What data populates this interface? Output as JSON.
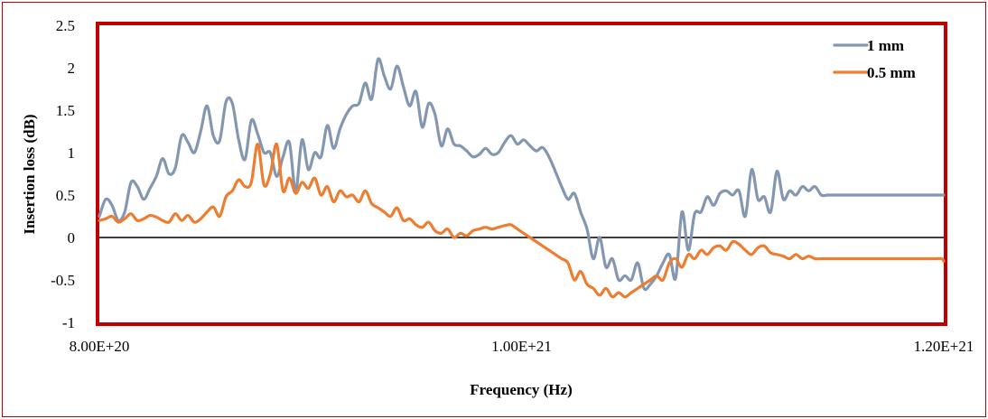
{
  "chart_data": {
    "type": "line",
    "xlabel": "Frequency (Hz)",
    "ylabel": "Insertion loss (dB)",
    "xlim": [
      8e+20,
      1.2e+21
    ],
    "ylim": [
      -1,
      2.5
    ],
    "x_ticks": [
      {
        "value": 8e+20,
        "label": "8.00E+20"
      },
      {
        "value": 1e+21,
        "label": "1.00E+21"
      },
      {
        "value": 1.2e+21,
        "label": "1.20E+21"
      }
    ],
    "y_ticks": [
      {
        "value": 2.5,
        "label": "2.5"
      },
      {
        "value": 2,
        "label": "2"
      },
      {
        "value": 1.5,
        "label": "1.5"
      },
      {
        "value": 1,
        "label": "1"
      },
      {
        "value": 0.5,
        "label": "0.5"
      },
      {
        "value": 0,
        "label": "0"
      },
      {
        "value": -0.5,
        "label": "-0.5"
      },
      {
        "value": -1,
        "label": "-1"
      }
    ],
    "grid": false,
    "zero_line": true,
    "legend_position": "top-right",
    "series": [
      {
        "name": "1 mm",
        "color": "#8497b0",
        "x": [
          8e+20,
          8.03e+20,
          8.06e+20,
          8.09e+20,
          8.12e+20,
          8.15e+20,
          8.18e+20,
          8.21e+20,
          8.24e+20,
          8.27e+20,
          8.3e+20,
          8.33e+20,
          8.36e+20,
          8.39e+20,
          8.42e+20,
          8.45e+20,
          8.48e+20,
          8.51e+20,
          8.54e+20,
          8.57e+20,
          8.6e+20,
          8.63e+20,
          8.66e+20,
          8.69e+20,
          8.72e+20,
          8.75e+20,
          8.78e+20,
          8.81e+20,
          8.84e+20,
          8.87e+20,
          8.9e+20,
          8.93e+20,
          8.96e+20,
          8.99e+20,
          9.02e+20,
          9.05e+20,
          9.08e+20,
          9.11e+20,
          9.14e+20,
          9.17e+20,
          9.2e+20,
          9.23e+20,
          9.26e+20,
          9.29e+20,
          9.32e+20,
          9.35e+20,
          9.38e+20,
          9.41e+20,
          9.44e+20,
          9.47e+20,
          9.5e+20,
          9.53e+20,
          9.56e+20,
          9.59e+20,
          9.62e+20,
          9.65e+20,
          9.68e+20,
          9.71e+20,
          9.74e+20,
          9.77e+20,
          9.8e+20,
          9.83e+20,
          9.86e+20,
          9.89e+20,
          9.92e+20,
          9.95e+20,
          9.98e+20,
          1.001e+21,
          1.004e+21,
          1.007e+21,
          1.01e+21,
          1.013e+21,
          1.016e+21,
          1.019e+21,
          1.022e+21,
          1.025e+21,
          1.028e+21,
          1.031e+21,
          1.034e+21,
          1.037e+21,
          1.04e+21,
          1.043e+21,
          1.046e+21,
          1.049e+21,
          1.052e+21,
          1.055e+21,
          1.058e+21,
          1.061e+21,
          1.064e+21,
          1.067e+21,
          1.07e+21,
          1.073e+21,
          1.076e+21,
          1.079e+21,
          1.082e+21,
          1.085e+21,
          1.088e+21,
          1.091e+21,
          1.094e+21,
          1.097e+21,
          1.1e+21,
          1.103e+21,
          1.106e+21,
          1.109e+21,
          1.112e+21,
          1.115e+21,
          1.118e+21,
          1.121e+21,
          1.124e+21,
          1.127e+21,
          1.13e+21,
          1.133e+21,
          1.136e+21,
          1.139e+21,
          1.142e+21,
          1.145e+21,
          1.148e+21,
          1.151e+21,
          1.154e+21,
          1.157e+21,
          1.16e+21,
          1.163e+21,
          1.166e+21,
          1.169e+21,
          1.172e+21,
          1.175e+21,
          1.178e+21,
          1.181e+21,
          1.184e+21,
          1.187e+21,
          1.19e+21,
          1.193e+21,
          1.196e+21,
          1.199e+21,
          1.2e+21
        ],
        "values": [
          0.25,
          0.45,
          0.38,
          0.2,
          0.3,
          0.65,
          0.6,
          0.45,
          0.58,
          0.72,
          0.93,
          0.75,
          0.82,
          1.2,
          1.12,
          1.0,
          1.25,
          1.55,
          1.2,
          1.14,
          1.6,
          1.58,
          1.15,
          0.92,
          1.38,
          1.22,
          1.0,
          1.0,
          0.72,
          0.95,
          1.12,
          0.55,
          1.15,
          0.8,
          1.0,
          0.95,
          1.32,
          1.05,
          1.28,
          1.45,
          1.55,
          1.58,
          1.82,
          1.63,
          2.1,
          1.9,
          1.75,
          2.02,
          1.78,
          1.55,
          1.72,
          1.3,
          1.58,
          1.45,
          1.08,
          1.28,
          1.1,
          1.08,
          1.02,
          0.95,
          0.98,
          1.05,
          0.98,
          1.0,
          1.12,
          1.2,
          1.1,
          1.15,
          1.08,
          1.02,
          1.06,
          0.95,
          0.78,
          0.6,
          0.45,
          0.52,
          0.3,
          0.1,
          -0.25,
          0.0,
          -0.35,
          -0.25,
          -0.5,
          -0.45,
          -0.5,
          -0.3,
          -0.6,
          -0.55,
          -0.45,
          -0.3,
          -0.2,
          -0.48,
          0.3,
          -0.15,
          0.28,
          0.3,
          0.48,
          0.38,
          0.52,
          0.55,
          0.5,
          0.55,
          0.25,
          0.8,
          0.45,
          0.48,
          0.3,
          0.78,
          0.45,
          0.55,
          0.5,
          0.6,
          0.55,
          0.6,
          0.5,
          0.5,
          0.5,
          0.5,
          0.5,
          0.5,
          0.5,
          0.5,
          0.5,
          0.5,
          0.5,
          0.5,
          0.5,
          0.5,
          0.5,
          0.5,
          0.5,
          0.5,
          0.5,
          0.5,
          0.5
        ]
      },
      {
        "name": "0.5 mm",
        "color": "#ed7d31",
        "x": [
          8e+20,
          8.03e+20,
          8.06e+20,
          8.09e+20,
          8.12e+20,
          8.15e+20,
          8.18e+20,
          8.21e+20,
          8.24e+20,
          8.27e+20,
          8.3e+20,
          8.33e+20,
          8.36e+20,
          8.39e+20,
          8.42e+20,
          8.45e+20,
          8.48e+20,
          8.51e+20,
          8.54e+20,
          8.57e+20,
          8.6e+20,
          8.63e+20,
          8.66e+20,
          8.69e+20,
          8.72e+20,
          8.75e+20,
          8.78e+20,
          8.81e+20,
          8.84e+20,
          8.87e+20,
          8.9e+20,
          8.93e+20,
          8.96e+20,
          8.99e+20,
          9.02e+20,
          9.05e+20,
          9.08e+20,
          9.11e+20,
          9.14e+20,
          9.17e+20,
          9.2e+20,
          9.23e+20,
          9.26e+20,
          9.29e+20,
          9.32e+20,
          9.35e+20,
          9.38e+20,
          9.41e+20,
          9.44e+20,
          9.47e+20,
          9.5e+20,
          9.53e+20,
          9.56e+20,
          9.59e+20,
          9.62e+20,
          9.65e+20,
          9.68e+20,
          9.71e+20,
          9.74e+20,
          9.77e+20,
          9.8e+20,
          9.83e+20,
          9.86e+20,
          9.89e+20,
          9.92e+20,
          9.95e+20,
          9.98e+20,
          1.001e+21,
          1.004e+21,
          1.007e+21,
          1.01e+21,
          1.013e+21,
          1.016e+21,
          1.019e+21,
          1.022e+21,
          1.025e+21,
          1.028e+21,
          1.031e+21,
          1.034e+21,
          1.037e+21,
          1.04e+21,
          1.043e+21,
          1.046e+21,
          1.049e+21,
          1.052e+21,
          1.055e+21,
          1.058e+21,
          1.061e+21,
          1.064e+21,
          1.067e+21,
          1.07e+21,
          1.073e+21,
          1.076e+21,
          1.079e+21,
          1.082e+21,
          1.085e+21,
          1.088e+21,
          1.091e+21,
          1.094e+21,
          1.097e+21,
          1.1e+21,
          1.103e+21,
          1.106e+21,
          1.109e+21,
          1.112e+21,
          1.115e+21,
          1.118e+21,
          1.121e+21,
          1.124e+21,
          1.127e+21,
          1.13e+21,
          1.133e+21,
          1.136e+21,
          1.139e+21,
          1.142e+21,
          1.145e+21,
          1.148e+21,
          1.151e+21,
          1.154e+21,
          1.157e+21,
          1.16e+21,
          1.163e+21,
          1.166e+21,
          1.169e+21,
          1.172e+21,
          1.175e+21,
          1.178e+21,
          1.181e+21,
          1.184e+21,
          1.187e+21,
          1.19e+21,
          1.193e+21,
          1.196e+21,
          1.199e+21,
          1.2e+21
        ],
        "values": [
          0.2,
          0.22,
          0.25,
          0.18,
          0.22,
          0.28,
          0.2,
          0.22,
          0.26,
          0.24,
          0.2,
          0.18,
          0.28,
          0.2,
          0.26,
          0.18,
          0.22,
          0.3,
          0.36,
          0.25,
          0.48,
          0.55,
          0.68,
          0.6,
          0.65,
          1.1,
          0.62,
          0.75,
          1.1,
          0.55,
          0.7,
          0.52,
          0.65,
          0.58,
          0.7,
          0.5,
          0.6,
          0.42,
          0.55,
          0.48,
          0.5,
          0.42,
          0.55,
          0.4,
          0.35,
          0.3,
          0.25,
          0.35,
          0.2,
          0.22,
          0.15,
          0.12,
          0.18,
          0.08,
          0.05,
          0.1,
          0.0,
          0.05,
          0.02,
          0.08,
          0.1,
          0.12,
          0.1,
          0.12,
          0.14,
          0.15,
          0.1,
          0.05,
          0.0,
          -0.05,
          -0.1,
          -0.15,
          -0.2,
          -0.25,
          -0.3,
          -0.5,
          -0.4,
          -0.55,
          -0.6,
          -0.68,
          -0.6,
          -0.7,
          -0.65,
          -0.7,
          -0.65,
          -0.6,
          -0.55,
          -0.5,
          -0.45,
          -0.5,
          -0.3,
          -0.25,
          -0.35,
          -0.2,
          -0.25,
          -0.15,
          -0.2,
          -0.12,
          -0.1,
          -0.15,
          -0.05,
          -0.08,
          -0.15,
          -0.2,
          -0.12,
          -0.1,
          -0.18,
          -0.2,
          -0.22,
          -0.25,
          -0.2,
          -0.25,
          -0.22,
          -0.25,
          -0.25,
          -0.25,
          -0.25,
          -0.25,
          -0.25,
          -0.25,
          -0.25,
          -0.25,
          -0.25,
          -0.25,
          -0.25,
          -0.25,
          -0.25,
          -0.25,
          -0.25,
          -0.25,
          -0.25,
          -0.25,
          -0.25,
          -0.25,
          -0.28
        ]
      }
    ]
  }
}
